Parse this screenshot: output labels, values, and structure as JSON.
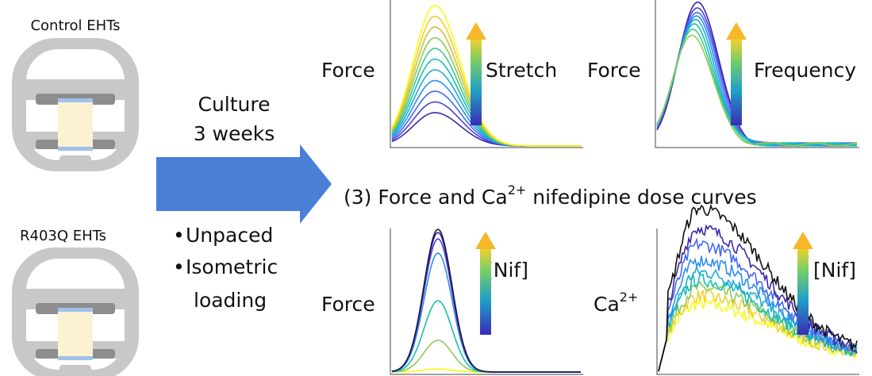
{
  "left": {
    "control_label": "Control EHTs",
    "mutant_label": "R403Q EHTs"
  },
  "arrow": {
    "line1": "Culture",
    "line2": "3 weeks",
    "bullets": [
      "Unpaced",
      "Isometric",
      "loading"
    ]
  },
  "panels": {
    "stretch": {
      "ylabel": "Force",
      "arrow_label": "Stretch"
    },
    "frequency": {
      "ylabel": "Force",
      "arrow_label": "Frequency"
    },
    "caption": {
      "prefix": "(3) Force and Ca",
      "sup": "2+",
      "suffix": " nifedipine dose curves"
    },
    "nif_force": {
      "ylabel": "Force",
      "arrow_label": "[Nif]"
    },
    "nif_ca": {
      "ylabel_main": "Ca",
      "ylabel_sup": "2+",
      "arrow_label": "[Nif]"
    }
  }
}
